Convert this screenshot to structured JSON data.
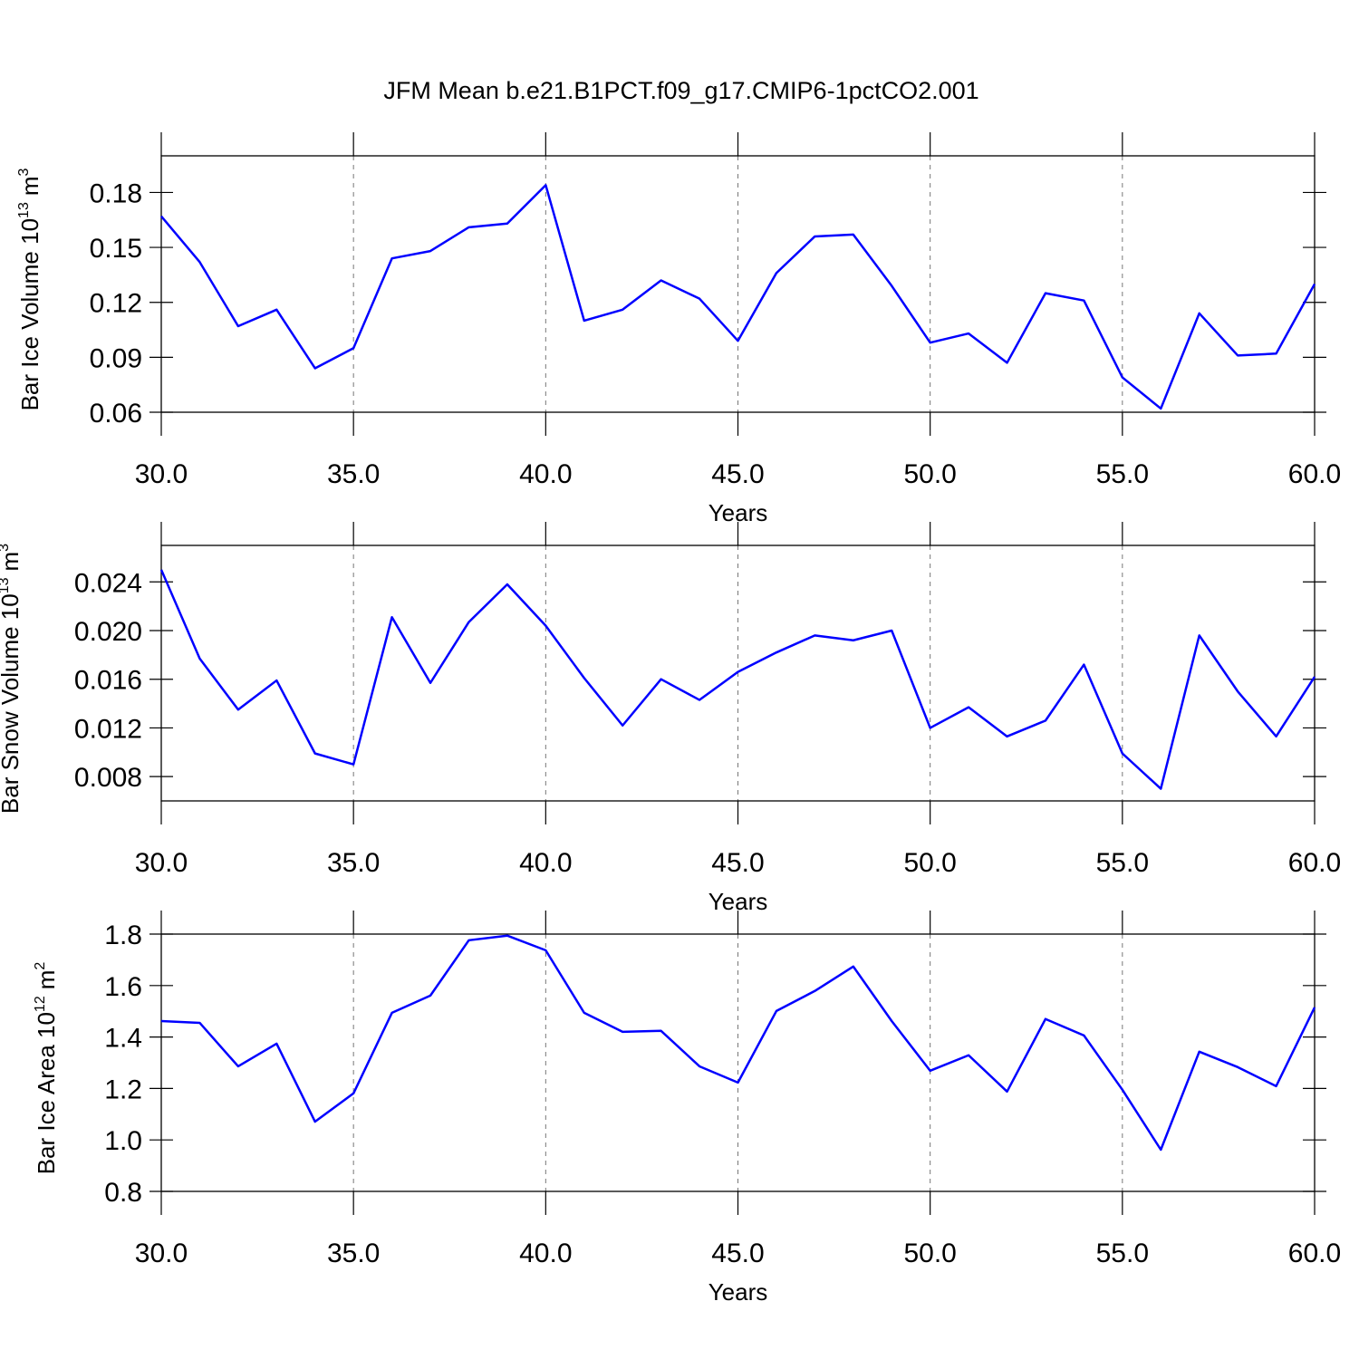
{
  "title": "JFM Mean b.e21.B1PCT.f09_g17.CMIP6-1pctCO2.001",
  "chart_data": [
    {
      "type": "line",
      "x": [
        30,
        31,
        32,
        33,
        34,
        35,
        36,
        37,
        38,
        39,
        40,
        41,
        42,
        43,
        44,
        45,
        46,
        47,
        48,
        49,
        50,
        51,
        52,
        53,
        54,
        55,
        56,
        57,
        58,
        59,
        60
      ],
      "series": [
        {
          "color": "#0000ff",
          "values": [
            0.167,
            0.142,
            0.107,
            0.116,
            0.084,
            0.095,
            0.144,
            0.148,
            0.161,
            0.163,
            0.184,
            0.11,
            0.116,
            0.132,
            0.122,
            0.099,
            0.136,
            0.156,
            0.157,
            0.129,
            0.098,
            0.103,
            0.087,
            0.125,
            0.121,
            0.079,
            0.062,
            0.114,
            0.091,
            0.092,
            0.13
          ]
        }
      ],
      "xlim": [
        30,
        60
      ],
      "xticks": [
        {
          "value": 30,
          "label": "30.0"
        },
        {
          "value": 35,
          "label": "35.0"
        },
        {
          "value": 40,
          "label": "40.0"
        },
        {
          "value": 45,
          "label": "45.0"
        },
        {
          "value": 50,
          "label": "50.0"
        },
        {
          "value": 55,
          "label": "55.0"
        },
        {
          "value": 60,
          "label": "60.0"
        }
      ],
      "ylim": [
        0.06,
        0.2
      ],
      "yticks": [
        0.06,
        0.09,
        0.12,
        0.15,
        0.18
      ],
      "xlabel": "Years",
      "ylabel": [
        "Bar Ice Volume 10",
        "13",
        "m",
        "3"
      ],
      "xgrid": true
    },
    {
      "type": "line",
      "x": [
        30,
        31,
        32,
        33,
        34,
        35,
        36,
        37,
        38,
        39,
        40,
        41,
        42,
        43,
        44,
        45,
        46,
        47,
        48,
        49,
        50,
        51,
        52,
        53,
        54,
        55,
        56,
        57,
        58,
        59,
        60
      ],
      "series": [
        {
          "color": "#0000ff",
          "values": [
            0.025,
            0.0177,
            0.0135,
            0.0159,
            0.0099,
            0.009,
            0.0211,
            0.0157,
            0.0207,
            0.0238,
            0.0204,
            0.0161,
            0.0122,
            0.016,
            0.0143,
            0.0166,
            0.0182,
            0.0196,
            0.0192,
            0.02,
            0.012,
            0.0137,
            0.0113,
            0.0126,
            0.0172,
            0.0099,
            0.007,
            0.0196,
            0.015,
            0.0113,
            0.0162
          ]
        }
      ],
      "xlim": [
        30,
        60
      ],
      "xticks": [
        {
          "value": 30,
          "label": "30.0"
        },
        {
          "value": 35,
          "label": "35.0"
        },
        {
          "value": 40,
          "label": "40.0"
        },
        {
          "value": 45,
          "label": "45.0"
        },
        {
          "value": 50,
          "label": "50.0"
        },
        {
          "value": 55,
          "label": "55.0"
        },
        {
          "value": 60,
          "label": "60.0"
        }
      ],
      "ylim": [
        0.006,
        0.027
      ],
      "yticks": [
        0.008,
        0.012,
        0.016,
        {
          "value": 0.02,
          "label": "0.020"
        },
        0.024
      ],
      "xlabel": "Years",
      "ylabel": [
        "Bar Snow Volume 10",
        "13",
        "m",
        "3"
      ],
      "xgrid": true
    },
    {
      "type": "line",
      "x": [
        30,
        31,
        32,
        33,
        34,
        35,
        36,
        37,
        38,
        39,
        40,
        41,
        42,
        43,
        44,
        45,
        46,
        47,
        48,
        49,
        50,
        51,
        52,
        53,
        54,
        55,
        56,
        57,
        58,
        59,
        60
      ],
      "series": [
        {
          "color": "#0000ff",
          "values": [
            1.462,
            1.455,
            1.286,
            1.374,
            1.071,
            1.181,
            1.494,
            1.561,
            1.776,
            1.794,
            1.737,
            1.494,
            1.42,
            1.424,
            1.286,
            1.223,
            1.501,
            1.579,
            1.674,
            1.462,
            1.269,
            1.329,
            1.188,
            1.47,
            1.406,
            1.195,
            0.962,
            1.343,
            1.283,
            1.209,
            1.515
          ]
        }
      ],
      "xlim": [
        30,
        60
      ],
      "xticks": [
        {
          "value": 30,
          "label": "30.0"
        },
        {
          "value": 35,
          "label": "35.0"
        },
        {
          "value": 40,
          "label": "40.0"
        },
        {
          "value": 45,
          "label": "45.0"
        },
        {
          "value": 50,
          "label": "50.0"
        },
        {
          "value": 55,
          "label": "55.0"
        },
        {
          "value": 60,
          "label": "60.0"
        }
      ],
      "ylim": [
        0.8,
        1.8
      ],
      "yticks": [
        0.8,
        {
          "value": 1,
          "label": "1.0"
        },
        1.2,
        1.4,
        1.6,
        1.8
      ],
      "xlabel": "Years",
      "ylabel": [
        "Bar Ice Area 10",
        "12",
        "m",
        "2"
      ],
      "xgrid": true
    }
  ]
}
